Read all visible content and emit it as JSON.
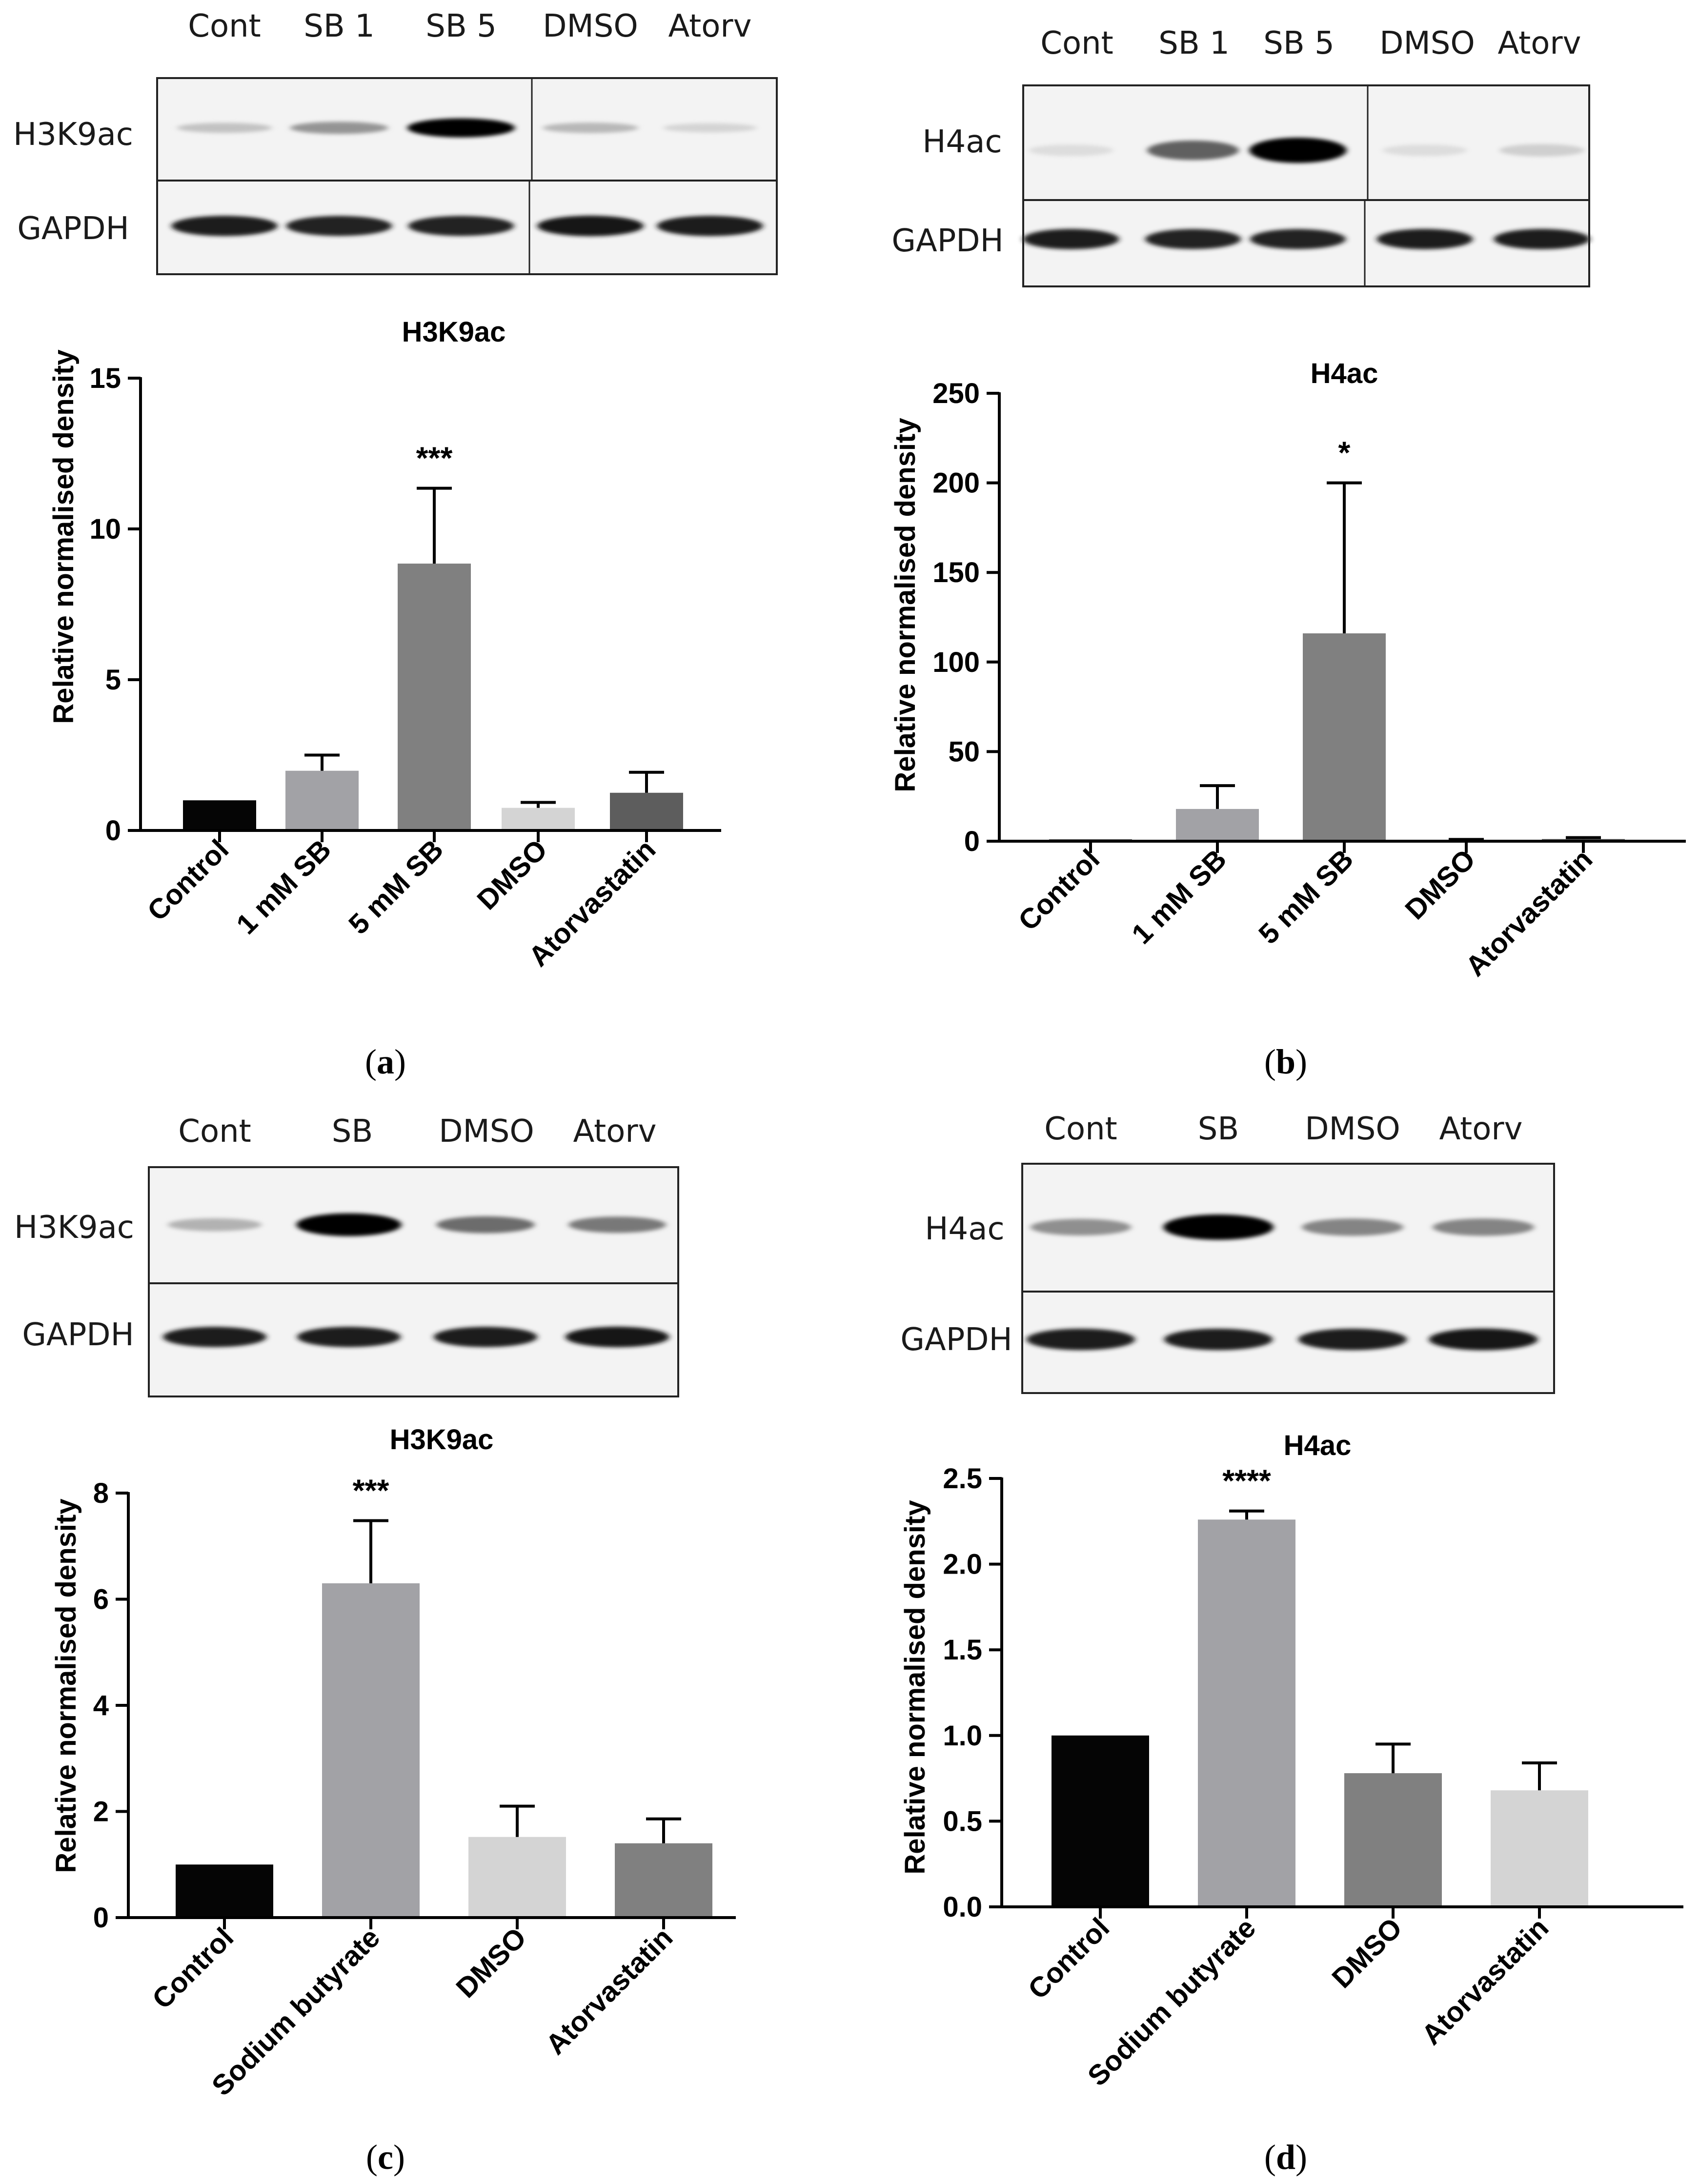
{
  "panels": [
    {
      "label_open": "(",
      "label_letter": "a",
      "label_close": ")",
      "blot": {
        "lanes": [
          "Cont",
          "SB 1",
          "SB 5",
          "DMSO",
          "Atorv"
        ],
        "rows": [
          {
            "name": "H3K9ac",
            "band_intensity": [
              0.18,
              0.38,
              1.0,
              0.22,
              0.1
            ]
          },
          {
            "name": "GAPDH",
            "band_intensity": [
              0.9,
              0.88,
              0.88,
              0.92,
              0.9
            ]
          }
        ]
      }
    },
    {
      "label_open": "(",
      "label_letter": "b",
      "label_close": ")",
      "blot": {
        "lanes": [
          "Cont",
          "SB 1",
          "SB 5",
          "DMSO",
          "Atorv"
        ],
        "rows": [
          {
            "name": "H4ac",
            "band_intensity": [
              0.06,
              0.6,
              1.0,
              0.06,
              0.12
            ]
          },
          {
            "name": "GAPDH",
            "band_intensity": [
              0.9,
              0.88,
              0.88,
              0.9,
              0.9
            ]
          }
        ]
      }
    },
    {
      "label_open": "(",
      "label_letter": "c",
      "label_close": ")",
      "blot": {
        "lanes": [
          "Cont",
          "SB",
          "DMSO",
          "Atorv"
        ],
        "rows": [
          {
            "name": "H3K9ac",
            "band_intensity": [
              0.25,
              1.0,
              0.55,
              0.5
            ]
          },
          {
            "name": "GAPDH",
            "band_intensity": [
              0.9,
              0.9,
              0.9,
              0.92
            ]
          }
        ]
      }
    },
    {
      "label_open": "(",
      "label_letter": "d",
      "label_close": ")",
      "blot": {
        "lanes": [
          "Cont",
          "SB",
          "DMSO",
          "Atorv"
        ],
        "rows": [
          {
            "name": "H4ac",
            "band_intensity": [
              0.4,
              1.0,
              0.45,
              0.45
            ]
          },
          {
            "name": "GAPDH",
            "band_intensity": [
              0.9,
              0.9,
              0.9,
              0.92
            ]
          }
        ]
      }
    }
  ],
  "chart_data": [
    {
      "type": "bar",
      "title": "H3K9ac",
      "ylabel": "Relative normalised density",
      "xlabel": "",
      "ylim": [
        0,
        15
      ],
      "yticks": [
        0,
        5,
        10,
        15
      ],
      "categories": [
        "Control",
        "1 mM SB",
        "5 mM SB",
        "DMSO",
        "Atorvastatin"
      ],
      "values": [
        1.0,
        1.98,
        8.85,
        0.75,
        1.25
      ],
      "errors": [
        0,
        0.52,
        2.5,
        0.18,
        0.68
      ],
      "annotations": [
        "",
        "",
        "***",
        "",
        ""
      ],
      "colors": [
        "#050505",
        "#a2a2a6",
        "#808080",
        "#d4d4d4",
        "#5d5d5d"
      ],
      "grid": false
    },
    {
      "type": "bar",
      "title": "H4ac",
      "ylabel": "Relative normalised density",
      "xlabel": "",
      "ylim": [
        0,
        250
      ],
      "yticks": [
        0,
        50,
        100,
        150,
        200,
        250
      ],
      "categories": [
        "Control",
        "1 mM SB",
        "5 mM SB",
        "DMSO",
        "Atorvastatin"
      ],
      "values": [
        1.0,
        18.0,
        116.0,
        0.7,
        1.2
      ],
      "errors": [
        0,
        13.0,
        84.0,
        0.3,
        0.8
      ],
      "annotations": [
        "",
        "",
        "*",
        "",
        ""
      ],
      "colors": [
        "#050505",
        "#a2a2a6",
        "#808080",
        "#d4d4d4",
        "#5d5d5d"
      ],
      "grid": false
    },
    {
      "type": "bar",
      "title": "H3K9ac",
      "ylabel": "Relative normalised density",
      "xlabel": "",
      "ylim": [
        0,
        8
      ],
      "yticks": [
        0,
        2,
        4,
        6,
        8
      ],
      "categories": [
        "Control",
        "Sodium butyrate",
        "DMSO",
        "Atorvastatin"
      ],
      "values": [
        1.0,
        6.3,
        1.52,
        1.4
      ],
      "errors": [
        0,
        1.18,
        0.58,
        0.46
      ],
      "annotations": [
        "",
        "***",
        "",
        ""
      ],
      "colors": [
        "#050505",
        "#a2a2a6",
        "#d4d4d4",
        "#808080"
      ],
      "grid": false
    },
    {
      "type": "bar",
      "title": "H4ac",
      "ylabel": "Relative normalised density",
      "xlabel": "",
      "ylim": [
        0,
        2.5
      ],
      "yticks": [
        "0.0",
        "0.5",
        "1.0",
        "1.5",
        "2.0",
        "2.5"
      ],
      "categories": [
        "Control",
        "Sodium butyrate",
        "DMSO",
        "Atorvastatin"
      ],
      "values": [
        1.0,
        2.26,
        0.78,
        0.68
      ],
      "errors": [
        0,
        0.05,
        0.17,
        0.16
      ],
      "annotations": [
        "",
        "****",
        "",
        ""
      ],
      "colors": [
        "#050505",
        "#a2a2a6",
        "#808080",
        "#d4d4d4"
      ],
      "grid": false
    }
  ]
}
